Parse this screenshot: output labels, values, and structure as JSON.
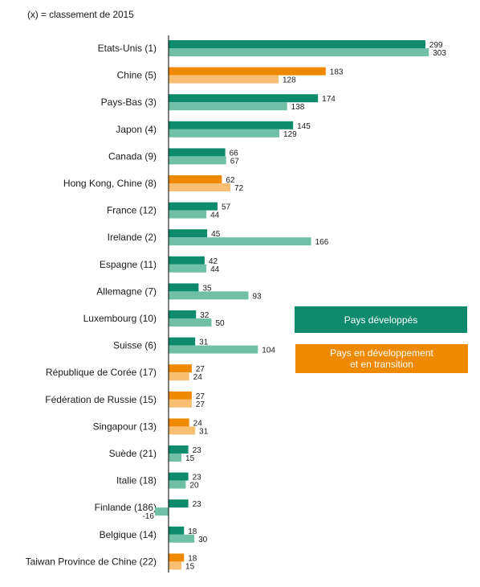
{
  "note": "(x) = classement de 2015",
  "legend": {
    "developed": "Pays développés",
    "transition_line1": "Pays en développement",
    "transition_line2": "et en transition"
  },
  "colors": {
    "developed_2016": "#0e8a6c",
    "developed_2015": "#6fc0a6",
    "transition_2016": "#ef8a00",
    "transition_2015": "#f8bf72",
    "axis": "#000000"
  },
  "chart_data": {
    "type": "bar",
    "orientation": "horizontal",
    "title": "",
    "xlabel": "",
    "ylabel": "",
    "xlim": [
      -20,
      305
    ],
    "grid": false,
    "legend_position": "right",
    "categories": [
      {
        "label": "Etats-Unis (1)",
        "group": "developed",
        "values": [
          299,
          303
        ]
      },
      {
        "label": "Chine (5)",
        "group": "transition",
        "values": [
          183,
          128
        ]
      },
      {
        "label": "Pays-Bas (3)",
        "group": "developed",
        "values": [
          174,
          138
        ]
      },
      {
        "label": "Japon (4)",
        "group": "developed",
        "values": [
          145,
          129
        ]
      },
      {
        "label": "Canada (9)",
        "group": "developed",
        "values": [
          66,
          67
        ]
      },
      {
        "label": "Hong Kong, Chine (8)",
        "group": "transition",
        "values": [
          62,
          72
        ]
      },
      {
        "label": "France (12)",
        "group": "developed",
        "values": [
          57,
          44
        ]
      },
      {
        "label": "Irelande (2)",
        "group": "developed",
        "values": [
          45,
          166
        ]
      },
      {
        "label": "Espagne (11)",
        "group": "developed",
        "values": [
          42,
          44
        ]
      },
      {
        "label": "Allemagne (7)",
        "group": "developed",
        "values": [
          35,
          93
        ]
      },
      {
        "label": "Luxembourg (10)",
        "group": "developed",
        "values": [
          32,
          50
        ]
      },
      {
        "label": "Suisse (6)",
        "group": "developed",
        "values": [
          31,
          104
        ]
      },
      {
        "label": "République de Corée (17)",
        "group": "transition",
        "values": [
          27,
          24
        ]
      },
      {
        "label": "Fédération de Russie (15)",
        "group": "transition",
        "values": [
          27,
          27
        ]
      },
      {
        "label": "Singapour (13)",
        "group": "transition",
        "values": [
          24,
          31
        ]
      },
      {
        "label": "Suède (21)",
        "group": "developed",
        "values": [
          23,
          15
        ]
      },
      {
        "label": "Italie (18)",
        "group": "developed",
        "values": [
          23,
          20
        ]
      },
      {
        "label": "Finlande (186)",
        "group": "developed",
        "values": [
          23,
          -16
        ]
      },
      {
        "label": "Belgique (14)",
        "group": "developed",
        "values": [
          18,
          30
        ]
      },
      {
        "label": "Taiwan Province de Chine (22)",
        "group": "transition",
        "values": [
          18,
          15
        ]
      }
    ]
  }
}
